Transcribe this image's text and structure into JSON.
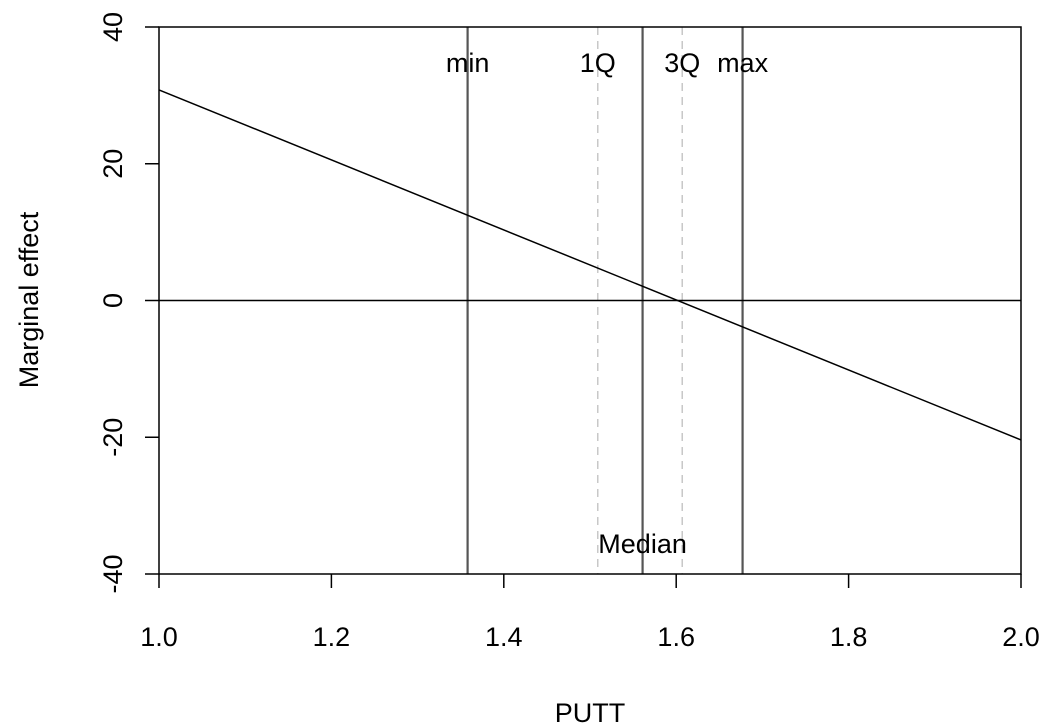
{
  "chart_data": {
    "type": "line",
    "title": "",
    "xlabel": "PUTT",
    "ylabel": "Marginal effect",
    "xlim": [
      1.0,
      2.0
    ],
    "ylim": [
      -40,
      40
    ],
    "x_ticks": [
      1.0,
      1.2,
      1.4,
      1.6,
      1.8,
      2.0
    ],
    "x_tick_labels": [
      "1.0",
      "1.2",
      "1.4",
      "1.6",
      "1.8",
      "2.0"
    ],
    "y_ticks": [
      -40,
      -20,
      0,
      20,
      40
    ],
    "y_tick_labels": [
      "-40",
      "-20",
      "0",
      "20",
      "40"
    ],
    "grid": false,
    "legend": "none",
    "series": [
      {
        "x": [
          1.0,
          2.0
        ],
        "y": [
          30.8,
          -20.4
        ],
        "color": "#000000"
      }
    ],
    "reference_lines": [
      {
        "axis": "y",
        "value": 0,
        "style": "solid",
        "color": "#000000"
      }
    ],
    "annotations": [
      {
        "label": "min",
        "x": 1.358,
        "style": "solid",
        "label_position": "top",
        "color": "#555555"
      },
      {
        "label": "1Q",
        "x": 1.509,
        "style": "dashed",
        "label_position": "top",
        "color": "#c8c8c8"
      },
      {
        "label": "Median",
        "x": 1.561,
        "style": "solid",
        "label_position": "bottom",
        "color": "#555555"
      },
      {
        "label": "3Q",
        "x": 1.607,
        "style": "dashed",
        "label_position": "top",
        "color": "#c8c8c8"
      },
      {
        "label": "max",
        "x": 1.677,
        "style": "solid",
        "label_position": "top",
        "color": "#555555"
      }
    ]
  }
}
